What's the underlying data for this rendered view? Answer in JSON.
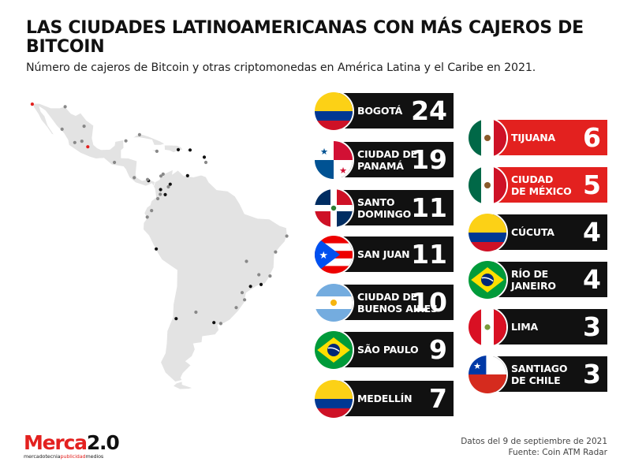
{
  "title": "LAS CIUDADES LATINOAMERICANAS CON MÁS CAJEROS DE BITCOIN",
  "subtitle": "Número de cajeros de Bitcoin y otras criptomonedas en América Latina y el Caribe en 2021.",
  "colors": {
    "black_bar": "#111111",
    "red_bar": "#e3211f",
    "text": "#111111",
    "map": "#e3e3e3"
  },
  "chart_data": {
    "type": "bar",
    "categories": [
      "BOGOTÁ",
      "CIUDAD DE\nPANAMÁ",
      "SANTO\nDOMINGO",
      "SAN JUAN",
      "CIUDAD DE\nBUENOS AIRES",
      "SÃO PAULO",
      "MEDELLÍN",
      "TIJUANA",
      "CIUDAD\nDE MÉXICO",
      "CÚCUTA",
      "RÍO DE\nJANEIRO",
      "LIMA",
      "SANTIAGO\nDE CHILE"
    ],
    "values": [
      24,
      19,
      11,
      11,
      10,
      9,
      7,
      6,
      5,
      4,
      4,
      3,
      3
    ],
    "value_labels": [
      "24",
      "19",
      "11",
      "11",
      "10",
      "9",
      "7",
      "6",
      "5",
      "4",
      "4",
      "3",
      "3"
    ],
    "flags": [
      "colombia",
      "panama",
      "dominican-republic",
      "puerto-rico",
      "argentina",
      "brazil",
      "colombia",
      "mexico",
      "mexico",
      "colombia",
      "brazil",
      "peru",
      "chile"
    ],
    "bar_colors": [
      "#111111",
      "#111111",
      "#111111",
      "#111111",
      "#111111",
      "#111111",
      "#111111",
      "#e3211f",
      "#e3211f",
      "#111111",
      "#111111",
      "#111111",
      "#111111"
    ]
  },
  "map_points": [
    {
      "lon": -117.0,
      "lat": 32.5,
      "color": "#e3211f"
    },
    {
      "lon": -99.1,
      "lat": 19.4,
      "color": "#e3211f"
    },
    {
      "lon": -106.4,
      "lat": 31.7,
      "color": "#888888"
    },
    {
      "lon": -107.4,
      "lat": 24.8,
      "color": "#888888"
    },
    {
      "lon": -100.3,
      "lat": 25.7,
      "color": "#888888"
    },
    {
      "lon": -103.3,
      "lat": 20.7,
      "color": "#888888"
    },
    {
      "lon": -101.0,
      "lat": 21.1,
      "color": "#888888"
    },
    {
      "lon": -86.8,
      "lat": 21.2,
      "color": "#888888"
    },
    {
      "lon": -82.4,
      "lat": 23.1,
      "color": "#888888"
    },
    {
      "lon": -90.5,
      "lat": 14.6,
      "color": "#888888"
    },
    {
      "lon": -84.1,
      "lat": 9.9,
      "color": "#888888"
    },
    {
      "lon": -79.5,
      "lat": 8.98,
      "color": "#111111"
    },
    {
      "lon": -79.8,
      "lat": 9.35,
      "color": "#888888"
    },
    {
      "lon": -76.8,
      "lat": 18.0,
      "color": "#888888"
    },
    {
      "lon": -69.9,
      "lat": 18.5,
      "color": "#111111"
    },
    {
      "lon": -66.1,
      "lat": 18.4,
      "color": "#111111"
    },
    {
      "lon": -61.5,
      "lat": 16.2,
      "color": "#111111"
    },
    {
      "lon": -61.0,
      "lat": 14.6,
      "color": "#888888"
    },
    {
      "lon": -66.9,
      "lat": 10.5,
      "color": "#111111"
    },
    {
      "lon": -74.8,
      "lat": 11.0,
      "color": "#888888"
    },
    {
      "lon": -75.5,
      "lat": 10.4,
      "color": "#888888"
    },
    {
      "lon": -72.5,
      "lat": 7.9,
      "color": "#111111"
    },
    {
      "lon": -75.6,
      "lat": 6.25,
      "color": "#111111"
    },
    {
      "lon": -74.1,
      "lat": 4.7,
      "color": "#111111"
    },
    {
      "lon": -73.1,
      "lat": 7.1,
      "color": "#888888"
    },
    {
      "lon": -76.5,
      "lat": 3.45,
      "color": "#888888"
    },
    {
      "lon": -75.7,
      "lat": 4.8,
      "color": "#888888"
    },
    {
      "lon": -78.5,
      "lat": -0.2,
      "color": "#888888"
    },
    {
      "lon": -79.9,
      "lat": -2.2,
      "color": "#888888"
    },
    {
      "lon": -77.0,
      "lat": -12.0,
      "color": "#111111"
    },
    {
      "lon": -70.6,
      "lat": -33.4,
      "color": "#111111"
    },
    {
      "lon": -58.4,
      "lat": -34.6,
      "color": "#111111"
    },
    {
      "lon": -64.2,
      "lat": -31.4,
      "color": "#888888"
    },
    {
      "lon": -56.2,
      "lat": -34.9,
      "color": "#888888"
    },
    {
      "lon": -46.6,
      "lat": -23.5,
      "color": "#111111"
    },
    {
      "lon": -43.2,
      "lat": -22.9,
      "color": "#111111"
    },
    {
      "lon": -47.9,
      "lat": -15.8,
      "color": "#888888"
    },
    {
      "lon": -43.9,
      "lat": -19.9,
      "color": "#888888"
    },
    {
      "lon": -49.3,
      "lat": -25.4,
      "color": "#888888"
    },
    {
      "lon": -51.2,
      "lat": -30.0,
      "color": "#888888"
    },
    {
      "lon": -48.5,
      "lat": -27.6,
      "color": "#888888"
    },
    {
      "lon": -38.5,
      "lat": -12.9,
      "color": "#888888"
    },
    {
      "lon": -34.9,
      "lat": -8.05,
      "color": "#888888"
    },
    {
      "lon": -40.3,
      "lat": -20.3,
      "color": "#888888"
    }
  ],
  "footer": {
    "line1": "Datos del 9 de septiembre de 2021",
    "line2": "Fuente: Coin ATM Radar"
  },
  "logo": {
    "name": "Merca",
    "version": "2.0",
    "tag1": "mercadotecnia",
    "tag2": "publicidad",
    "tag3": "medios"
  }
}
